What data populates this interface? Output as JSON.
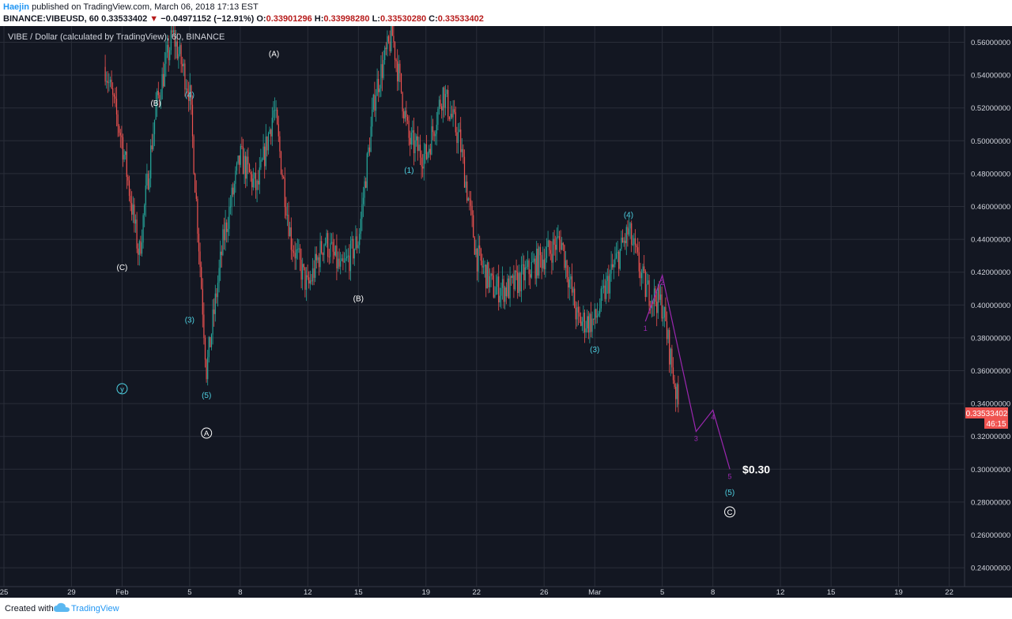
{
  "header": {
    "user": "Haejin",
    "published": " published on TradingView.com, March 06, 2018 17:13 EST",
    "symbol": "BINANCE:VIBEUSD, 60",
    "last": "0.33533402",
    "change": "−0.04971152 (−12.91%)",
    "ohlc": [
      {
        "label": "O:",
        "value": "0.33901296"
      },
      {
        "label": "H:",
        "value": "0.33998280"
      },
      {
        "label": "L:",
        "value": "0.33530280"
      },
      {
        "label": "C:",
        "value": "0.33533402"
      }
    ]
  },
  "footer": {
    "created_with": "Created with",
    "brand": "TradingView"
  },
  "colors": {
    "background": "#131722",
    "grid": "#2a2e39",
    "up": "#26a69a",
    "down": "#ef5350",
    "wave_cyan": "#4dd0e1",
    "wave_white": "#ffffff",
    "projection": "#9c27b0",
    "price_badge": "#ef5350"
  },
  "chart_data": {
    "type": "candlestick",
    "title": "VIBE / Dollar (calculated by TradingView), 60, BINANCE",
    "timeframe": "60",
    "x_ticks": [
      "25",
      "29",
      "Feb",
      "5",
      "8",
      "12",
      "15",
      "19",
      "22",
      "26",
      "Mar",
      "5",
      "8",
      "12",
      "15",
      "19",
      "22"
    ],
    "y_ticks": [
      "0.56000000",
      "0.54000000",
      "0.52000000",
      "0.50000000",
      "0.48000000",
      "0.46000000",
      "0.44000000",
      "0.42000000",
      "0.40000000",
      "0.38000000",
      "0.36000000",
      "0.34000000",
      "0.32000000",
      "0.30000000",
      "0.28000000",
      "0.26000000",
      "0.24000000"
    ],
    "ylim": [
      0.23,
      0.57
    ],
    "last_price": "0.33533402",
    "countdown": "46:15",
    "price_path": [
      {
        "date": "2018-01-31",
        "price": 0.545
      },
      {
        "date": "2018-02-01",
        "price": 0.5
      },
      {
        "date": "2018-02-02",
        "price": 0.43
      },
      {
        "date": "2018-02-03",
        "price": 0.52
      },
      {
        "date": "2018-02-04",
        "price": 0.565
      },
      {
        "date": "2018-02-05",
        "price": 0.53
      },
      {
        "date": "2018-02-06",
        "price": 0.36
      },
      {
        "date": "2018-02-07",
        "price": 0.44
      },
      {
        "date": "2018-02-08",
        "price": 0.49
      },
      {
        "date": "2018-02-09",
        "price": 0.47
      },
      {
        "date": "2018-02-10",
        "price": 0.52
      },
      {
        "date": "2018-02-11",
        "price": 0.44
      },
      {
        "date": "2018-02-12",
        "price": 0.41
      },
      {
        "date": "2018-02-13",
        "price": 0.44
      },
      {
        "date": "2018-02-14",
        "price": 0.42
      },
      {
        "date": "2018-02-15",
        "price": 0.44
      },
      {
        "date": "2018-02-16",
        "price": 0.53
      },
      {
        "date": "2018-02-17",
        "price": 0.565
      },
      {
        "date": "2018-02-18",
        "price": 0.5
      },
      {
        "date": "2018-02-19",
        "price": 0.49
      },
      {
        "date": "2018-02-20",
        "price": 0.53
      },
      {
        "date": "2018-02-21",
        "price": 0.5
      },
      {
        "date": "2018-02-22",
        "price": 0.43
      },
      {
        "date": "2018-02-23",
        "price": 0.41
      },
      {
        "date": "2018-02-24",
        "price": 0.41
      },
      {
        "date": "2018-02-25",
        "price": 0.42
      },
      {
        "date": "2018-02-26",
        "price": 0.43
      },
      {
        "date": "2018-02-27",
        "price": 0.44
      },
      {
        "date": "2018-02-28",
        "price": 0.39
      },
      {
        "date": "2018-03-01",
        "price": 0.39
      },
      {
        "date": "2018-03-02",
        "price": 0.42
      },
      {
        "date": "2018-03-03",
        "price": 0.445
      },
      {
        "date": "2018-03-04",
        "price": 0.41
      },
      {
        "date": "2018-03-05",
        "price": 0.4
      },
      {
        "date": "2018-03-06",
        "price": 0.335
      }
    ],
    "projection": [
      {
        "label": "1",
        "date": "2018-03-04",
        "price": 0.39
      },
      {
        "label": "2",
        "date": "2018-03-05",
        "price": 0.418
      },
      {
        "label": "3",
        "date": "2018-03-07",
        "price": 0.323
      },
      {
        "label": "4",
        "date": "2018-03-08",
        "price": 0.336
      },
      {
        "label": "5",
        "date": "2018-03-09",
        "price": 0.3
      }
    ],
    "target_label": "$0.30",
    "annotations": [
      {
        "text": "(A)",
        "style": "white",
        "date": "2018-02-10",
        "price": 0.553
      },
      {
        "text": "(B)",
        "style": "white",
        "date": "2018-02-03",
        "price": 0.523
      },
      {
        "text": "(4)",
        "style": "cyan",
        "date": "2018-02-05",
        "price": 0.528
      },
      {
        "text": "(C)",
        "style": "white",
        "date": "2018-02-01",
        "price": 0.423
      },
      {
        "text": "(3)",
        "style": "cyan",
        "date": "2018-02-05",
        "price": 0.391
      },
      {
        "text": "(5)",
        "style": "cyan",
        "date": "2018-02-06",
        "price": 0.345
      },
      {
        "text": "y",
        "style": "circle-cyan",
        "date": "2018-02-01",
        "price": 0.349
      },
      {
        "text": "A",
        "style": "circle-white",
        "date": "2018-02-06",
        "price": 0.322
      },
      {
        "text": "(B)",
        "style": "white",
        "date": "2018-02-15",
        "price": 0.404
      },
      {
        "text": "(1)",
        "style": "cyan",
        "date": "2018-02-18",
        "price": 0.482
      },
      {
        "text": "(4)",
        "style": "cyan",
        "date": "2018-03-03",
        "price": 0.455
      },
      {
        "text": "(3)",
        "style": "cyan",
        "date": "2018-03-01",
        "price": 0.373
      },
      {
        "text": "(5)",
        "style": "cyan",
        "date": "2018-03-09",
        "price": 0.286
      },
      {
        "text": "C",
        "style": "circle-white",
        "date": "2018-03-09",
        "price": 0.274
      }
    ]
  }
}
